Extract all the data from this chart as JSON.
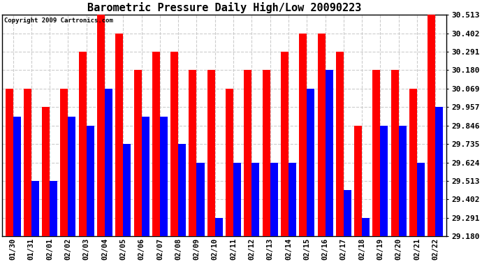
{
  "title": "Barometric Pressure Daily High/Low 20090223",
  "copyright": "Copyright 2009 Cartronics.com",
  "dates": [
    "01/30",
    "01/31",
    "02/01",
    "02/02",
    "02/03",
    "02/04",
    "02/05",
    "02/06",
    "02/07",
    "02/08",
    "02/09",
    "02/10",
    "02/11",
    "02/12",
    "02/13",
    "02/14",
    "02/15",
    "02/16",
    "02/17",
    "02/18",
    "02/19",
    "02/20",
    "02/21",
    "02/22"
  ],
  "highs": [
    30.069,
    30.069,
    29.957,
    30.069,
    30.291,
    30.513,
    30.402,
    30.18,
    30.291,
    30.291,
    30.18,
    30.18,
    30.069,
    30.18,
    30.18,
    30.291,
    30.402,
    30.402,
    30.291,
    29.846,
    30.18,
    30.18,
    30.069,
    30.513
  ],
  "lows": [
    29.902,
    29.513,
    29.513,
    29.902,
    29.846,
    30.069,
    29.735,
    29.902,
    29.902,
    29.735,
    29.624,
    29.291,
    29.624,
    29.624,
    29.624,
    29.624,
    30.069,
    30.18,
    29.457,
    29.291,
    29.846,
    29.846,
    29.624,
    29.957
  ],
  "high_color": "#FF0000",
  "low_color": "#0000FF",
  "bg_color": "#FFFFFF",
  "plot_bg_color": "#FFFFFF",
  "grid_color": "#CCCCCC",
  "yticks": [
    29.18,
    29.291,
    29.402,
    29.513,
    29.624,
    29.735,
    29.846,
    29.957,
    30.069,
    30.18,
    30.291,
    30.402,
    30.513
  ],
  "ymin": 29.18,
  "ymax": 30.513,
  "bar_width": 0.42
}
